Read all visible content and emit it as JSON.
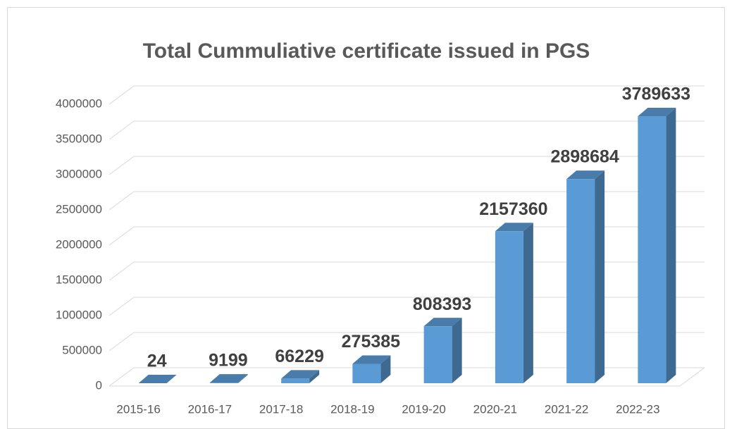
{
  "chart_data": {
    "type": "bar3d",
    "title": "Total Cummuliative certificate issued in PGS",
    "categories": [
      "2015-16",
      "2016-17",
      "2017-18",
      "2018-19",
      "2019-20",
      "2020-21",
      "2021-22",
      "2022-23"
    ],
    "values": [
      24,
      9199,
      66229,
      275385,
      808393,
      2157360,
      2898684,
      3789633
    ],
    "color": "#5b9bd5",
    "ylim": [
      0,
      4000000
    ],
    "yticks": [
      0,
      500000,
      1000000,
      1500000,
      2000000,
      2500000,
      3000000,
      3500000,
      4000000
    ],
    "grid": true
  }
}
